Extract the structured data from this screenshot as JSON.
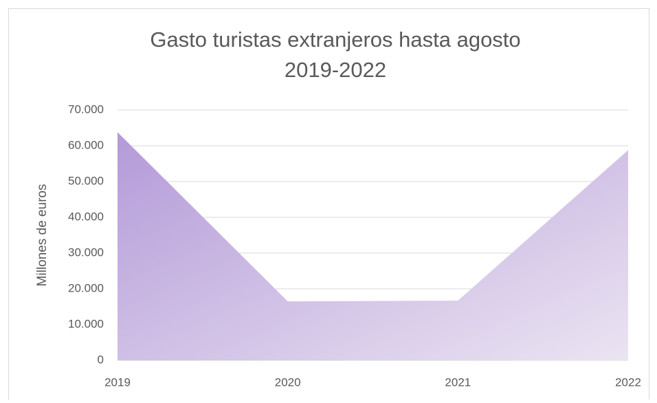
{
  "chart_data": {
    "type": "area",
    "title": [
      "Gasto turistas extranjeros hasta agosto",
      "2019-2022"
    ],
    "y_label": "Millones de euros",
    "categories": [
      "2019",
      "2020",
      "2021",
      "2022"
    ],
    "values": [
      63800,
      16500,
      16700,
      58800
    ],
    "color": [
      "#b39ad8",
      "#ebe4f2"
    ],
    "ylim": [
      0,
      70000
    ],
    "yticks": [
      0,
      {
        "value": 10000,
        "label": "10.000"
      },
      {
        "value": 20000,
        "label": "20.000"
      },
      {
        "value": 30000,
        "label": "30.000"
      },
      {
        "value": 40000,
        "label": "40.000"
      },
      {
        "value": 50000,
        "label": "50.000"
      },
      {
        "value": 60000,
        "label": "60.000"
      },
      {
        "value": 70000,
        "label": "70.000"
      }
    ],
    "grid": true
  }
}
